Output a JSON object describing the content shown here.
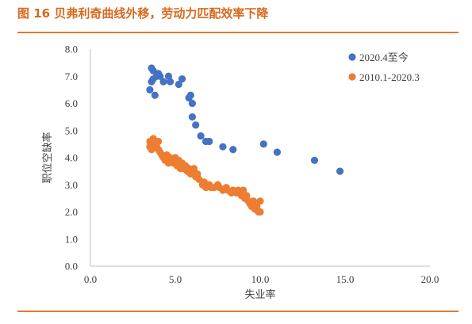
{
  "caption": "图 16 贝弗利奇曲线外移，劳动力匹配效率下降",
  "chart_data": {
    "type": "scatter",
    "xlabel": "失业率",
    "ylabel": "职位空缺率",
    "xlim": [
      0,
      20
    ],
    "ylim": [
      0,
      8
    ],
    "x_ticks": [
      "0.0",
      "5.0",
      "10.0",
      "15.0",
      "20.0"
    ],
    "y_ticks": [
      "0.0",
      "1.0",
      "2.0",
      "3.0",
      "4.0",
      "5.0",
      "6.0",
      "7.0",
      "8.0"
    ],
    "grid": false,
    "legend_position": "top-right",
    "series": [
      {
        "name": "2020.4至今",
        "color": "#4472c4",
        "points": [
          [
            3.5,
            6.5
          ],
          [
            3.6,
            6.8
          ],
          [
            3.6,
            7.3
          ],
          [
            3.7,
            7.2
          ],
          [
            3.7,
            6.9
          ],
          [
            3.8,
            6.3
          ],
          [
            3.9,
            7.0
          ],
          [
            4.0,
            7.1
          ],
          [
            4.1,
            7.0
          ],
          [
            4.3,
            6.8
          ],
          [
            4.6,
            7.0
          ],
          [
            4.7,
            6.8
          ],
          [
            5.2,
            6.7
          ],
          [
            5.4,
            6.9
          ],
          [
            5.8,
            6.2
          ],
          [
            5.9,
            6.3
          ],
          [
            6.0,
            6.0
          ],
          [
            6.0,
            5.5
          ],
          [
            6.2,
            5.2
          ],
          [
            6.5,
            4.8
          ],
          [
            6.8,
            4.6
          ],
          [
            7.0,
            4.6
          ],
          [
            7.8,
            4.4
          ],
          [
            8.4,
            4.3
          ],
          [
            10.2,
            4.5
          ],
          [
            11.0,
            4.2
          ],
          [
            13.2,
            3.9
          ],
          [
            14.7,
            3.5
          ]
        ]
      },
      {
        "name": "2010.1-2020.3",
        "color": "#ed7d31",
        "points": [
          [
            3.5,
            4.4
          ],
          [
            3.5,
            4.6
          ],
          [
            3.6,
            4.3
          ],
          [
            3.7,
            4.5
          ],
          [
            3.7,
            4.7
          ],
          [
            3.8,
            4.5
          ],
          [
            3.8,
            4.6
          ],
          [
            3.9,
            4.4
          ],
          [
            4.0,
            4.6
          ],
          [
            4.0,
            4.3
          ],
          [
            4.1,
            4.2
          ],
          [
            4.2,
            4.1
          ],
          [
            4.3,
            4.0
          ],
          [
            4.4,
            3.9
          ],
          [
            4.5,
            4.1
          ],
          [
            4.6,
            3.8
          ],
          [
            4.7,
            4.0
          ],
          [
            4.8,
            3.9
          ],
          [
            4.9,
            3.8
          ],
          [
            5.0,
            4.0
          ],
          [
            5.1,
            3.7
          ],
          [
            5.2,
            3.9
          ],
          [
            5.3,
            3.6
          ],
          [
            5.4,
            3.8
          ],
          [
            5.5,
            3.6
          ],
          [
            5.6,
            3.7
          ],
          [
            5.7,
            3.5
          ],
          [
            5.8,
            3.6
          ],
          [
            5.9,
            3.4
          ],
          [
            6.0,
            3.5
          ],
          [
            6.1,
            3.6
          ],
          [
            6.2,
            3.3
          ],
          [
            6.3,
            3.4
          ],
          [
            6.4,
            3.2
          ],
          [
            6.6,
            3.0
          ],
          [
            6.7,
            3.1
          ],
          [
            6.8,
            2.9
          ],
          [
            7.0,
            3.0
          ],
          [
            7.1,
            2.9
          ],
          [
            7.3,
            2.9
          ],
          [
            7.5,
            3.0
          ],
          [
            7.6,
            2.9
          ],
          [
            7.8,
            2.8
          ],
          [
            8.0,
            2.9
          ],
          [
            8.1,
            2.8
          ],
          [
            8.3,
            2.7
          ],
          [
            8.4,
            2.8
          ],
          [
            8.6,
            2.7
          ],
          [
            8.7,
            2.8
          ],
          [
            8.9,
            2.6
          ],
          [
            9.0,
            2.8
          ],
          [
            9.1,
            2.5
          ],
          [
            9.2,
            2.6
          ],
          [
            9.3,
            2.4
          ],
          [
            9.4,
            2.3
          ],
          [
            9.5,
            2.2
          ],
          [
            9.6,
            2.4
          ],
          [
            9.7,
            2.1
          ],
          [
            9.8,
            2.2
          ],
          [
            9.9,
            2.0
          ],
          [
            10.0,
            2.4
          ],
          [
            10.0,
            2.0
          ]
        ]
      }
    ]
  }
}
